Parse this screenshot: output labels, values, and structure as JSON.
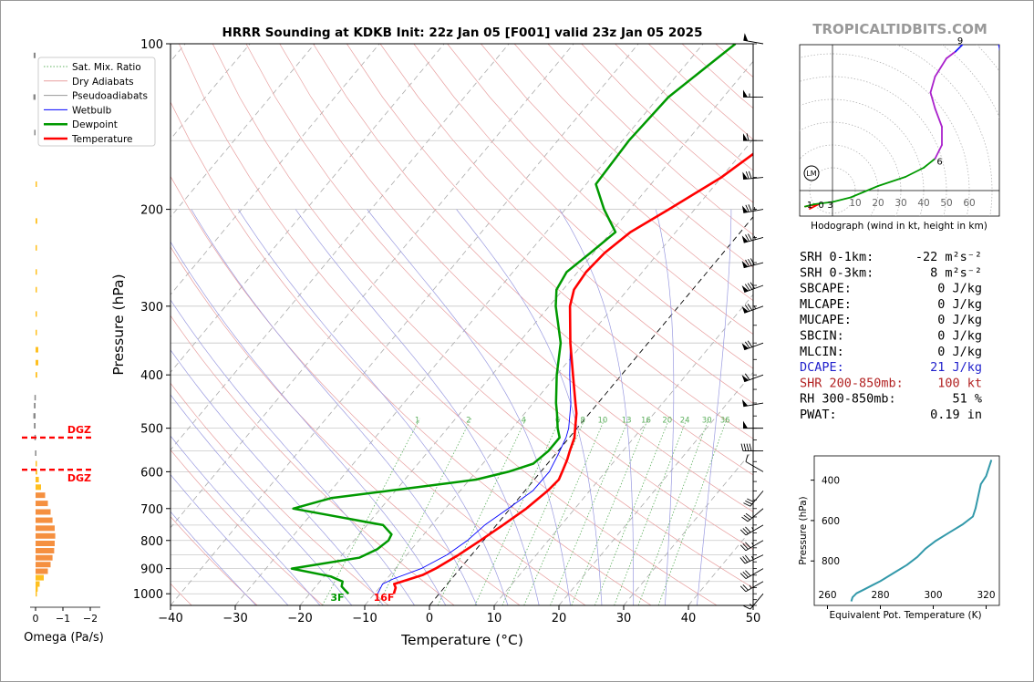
{
  "title": "HRRR Sounding at KDKB Init: 22z Jan 05 [F001] valid 23z Jan 05 2025",
  "watermark": "TROPICALTIDBITS.COM",
  "colors": {
    "temperature": "#ff0000",
    "dewpoint": "#009900",
    "wetbulb": "#0000ff",
    "dry_adiabat": "#e8a0a0",
    "moist_adiabat": "#9a9ae0",
    "mixing_ratio": "#5fb05f",
    "dcape": "#2222cc",
    "shear": "#b22222",
    "omega_yellow": "#ffc020",
    "omega_orange": "#f59040",
    "dgz": "#ff0000",
    "theta_e": "#3399aa"
  },
  "chart_data": [
    {
      "type": "line",
      "name": "skew-t",
      "xlabel": "Temperature (°C)",
      "ylabel": "Pressure (hPa)",
      "xlim": [
        -40,
        50
      ],
      "ylim": [
        1050,
        100
      ],
      "y_scale": "log",
      "x_ticks": [
        "−40",
        "−30",
        "−20",
        "−10",
        "0",
        "10",
        "20",
        "30",
        "40",
        "50"
      ],
      "y_ticks": [
        "100",
        "200",
        "300",
        "400",
        "500",
        "600",
        "700",
        "800",
        "900",
        "1000"
      ],
      "legend": {
        "placement": "top-left",
        "entries": [
          "Sat. Mix. Ratio",
          "Dry Adiabats",
          "Pseudoadiabats",
          "Wetbulb",
          "Dewpoint",
          "Temperature"
        ]
      },
      "series": [
        {
          "name": "Temperature",
          "points": [
            [
              1000,
              -7
            ],
            [
              975,
              -7.5
            ],
            [
              960,
              -8.2
            ],
            [
              925,
              -5
            ],
            [
              900,
              -3.8
            ],
            [
              850,
              -2
            ],
            [
              800,
              -0.5
            ],
            [
              750,
              1
            ],
            [
              700,
              2.5
            ],
            [
              650,
              3.5
            ],
            [
              620,
              3.8
            ],
            [
              600,
              3.3
            ],
            [
              570,
              2.5
            ],
            [
              550,
              1.8
            ],
            [
              520,
              0.8
            ],
            [
              500,
              -0.3
            ],
            [
              470,
              -2
            ],
            [
              450,
              -3.5
            ],
            [
              400,
              -7.5
            ],
            [
              350,
              -12
            ],
            [
              300,
              -16.8
            ],
            [
              280,
              -18.3
            ],
            [
              260,
              -18.7
            ],
            [
              240,
              -18.3
            ],
            [
              220,
              -17
            ],
            [
              200,
              -14
            ],
            [
              175,
              -10
            ],
            [
              150,
              -7
            ],
            [
              125,
              -4
            ],
            [
              100,
              -0.5
            ]
          ]
        },
        {
          "name": "Dewpoint",
          "points": [
            [
              1000,
              -14
            ],
            [
              985,
              -15
            ],
            [
              970,
              -16
            ],
            [
              950,
              -16.5
            ],
            [
              930,
              -19
            ],
            [
              900,
              -26
            ],
            [
              860,
              -17
            ],
            [
              830,
              -15.3
            ],
            [
              800,
              -14.7
            ],
            [
              780,
              -15
            ],
            [
              750,
              -17.5
            ],
            [
              700,
              -33.5
            ],
            [
              670,
              -29
            ],
            [
              640,
              -17
            ],
            [
              620,
              -9
            ],
            [
              600,
              -5
            ],
            [
              580,
              -2.2
            ],
            [
              550,
              -1.5
            ],
            [
              520,
              -1.5
            ],
            [
              500,
              -3
            ],
            [
              470,
              -5
            ],
            [
              450,
              -6.5
            ],
            [
              400,
              -10
            ],
            [
              350,
              -13.5
            ],
            [
              300,
              -19
            ],
            [
              280,
              -21
            ],
            [
              260,
              -21.7
            ],
            [
              240,
              -20.5
            ],
            [
              220,
              -19.3
            ],
            [
              200,
              -24
            ],
            [
              180,
              -28.5
            ],
            [
              150,
              -29
            ],
            [
              125,
              -28.5
            ],
            [
              100,
              -25
            ]
          ]
        },
        {
          "name": "Wetbulb",
          "points": [
            [
              1000,
              -9.5
            ],
            [
              960,
              -10
            ],
            [
              940,
              -9
            ],
            [
              900,
              -6
            ],
            [
              850,
              -3.8
            ],
            [
              800,
              -2.5
            ],
            [
              750,
              -1.8
            ],
            [
              700,
              -0.3
            ],
            [
              650,
              1.2
            ],
            [
              600,
              1.3
            ],
            [
              560,
              0.5
            ],
            [
              520,
              -0.5
            ],
            [
              500,
              -1.3
            ],
            [
              450,
              -4.2
            ],
            [
              400,
              -8
            ],
            [
              350,
              -12
            ],
            [
              300,
              -16.8
            ],
            [
              280,
              -18.3
            ],
            [
              260,
              -18.7
            ],
            [
              240,
              -18.3
            ],
            [
              220,
              -17
            ],
            [
              200,
              -14
            ],
            [
              175,
              -10
            ],
            [
              150,
              -7
            ],
            [
              125,
              -4
            ],
            [
              100,
              -0.5
            ]
          ]
        }
      ],
      "annotations": [
        {
          "text": "3F",
          "color": "#009900"
        },
        {
          "text": "16F",
          "color": "#ff0000"
        }
      ],
      "mixing_ratio_labels": [
        "1",
        "2",
        "4",
        "6",
        "8",
        "10",
        "13",
        "16",
        "20",
        "24",
        "30",
        "36"
      ],
      "mixing_ratio_values": [
        1,
        2,
        4,
        6,
        8,
        10,
        13,
        16,
        20,
        24,
        30,
        36
      ],
      "wind_barbs": [
        {
          "p": 1000,
          "speed_kt": 15,
          "dir_deg": 220
        },
        {
          "p": 950,
          "speed_kt": 25,
          "dir_deg": 240
        },
        {
          "p": 900,
          "speed_kt": 30,
          "dir_deg": 240
        },
        {
          "p": 850,
          "speed_kt": 35,
          "dir_deg": 245
        },
        {
          "p": 800,
          "speed_kt": 35,
          "dir_deg": 240
        },
        {
          "p": 750,
          "speed_kt": 35,
          "dir_deg": 240
        },
        {
          "p": 700,
          "speed_kt": 30,
          "dir_deg": 230
        },
        {
          "p": 650,
          "speed_kt": 30,
          "dir_deg": 220
        },
        {
          "p": 600,
          "speed_kt": 10,
          "dir_deg": 300
        },
        {
          "p": 550,
          "speed_kt": 40,
          "dir_deg": 270
        },
        {
          "p": 500,
          "speed_kt": 50,
          "dir_deg": 270
        },
        {
          "p": 450,
          "speed_kt": 50,
          "dir_deg": 260
        },
        {
          "p": 400,
          "speed_kt": 60,
          "dir_deg": 250
        },
        {
          "p": 350,
          "speed_kt": 70,
          "dir_deg": 250
        },
        {
          "p": 300,
          "speed_kt": 75,
          "dir_deg": 250
        },
        {
          "p": 275,
          "speed_kt": 80,
          "dir_deg": 250
        },
        {
          "p": 250,
          "speed_kt": 80,
          "dir_deg": 255
        },
        {
          "p": 225,
          "speed_kt": 75,
          "dir_deg": 255
        },
        {
          "p": 200,
          "speed_kt": 75,
          "dir_deg": 260
        },
        {
          "p": 175,
          "speed_kt": 70,
          "dir_deg": 265
        },
        {
          "p": 150,
          "speed_kt": 60,
          "dir_deg": 270
        },
        {
          "p": 125,
          "speed_kt": 55,
          "dir_deg": 270
        },
        {
          "p": 100,
          "speed_kt": 50,
          "dir_deg": 280
        }
      ]
    },
    {
      "type": "bar",
      "name": "omega",
      "xlabel": "Omega (Pa/s)",
      "x_ticks": [
        "0",
        "−1",
        "−2"
      ],
      "xlim": [
        0.2,
        -2.2
      ],
      "dgz_label": "DGZ",
      "dgz_bounds_hpa": [
        520,
        595
      ],
      "bars": [
        {
          "p": 1000,
          "value": -0.05
        },
        {
          "p": 980,
          "value": -0.08
        },
        {
          "p": 960,
          "value": -0.15
        },
        {
          "p": 935,
          "value": -0.3
        },
        {
          "p": 910,
          "value": -0.45
        },
        {
          "p": 885,
          "value": -0.55
        },
        {
          "p": 860,
          "value": -0.62
        },
        {
          "p": 835,
          "value": -0.68
        },
        {
          "p": 810,
          "value": -0.7
        },
        {
          "p": 785,
          "value": -0.72
        },
        {
          "p": 760,
          "value": -0.7
        },
        {
          "p": 735,
          "value": -0.62
        },
        {
          "p": 710,
          "value": -0.55
        },
        {
          "p": 685,
          "value": -0.45
        },
        {
          "p": 662,
          "value": -0.35
        },
        {
          "p": 640,
          "value": -0.2
        },
        {
          "p": 620,
          "value": -0.12
        },
        {
          "p": 600,
          "value": -0.06
        },
        {
          "p": 580,
          "value": -0.03
        },
        {
          "p": 555,
          "value": 0.02
        },
        {
          "p": 520,
          "value": 0.04
        },
        {
          "p": 495,
          "value": 0.06
        },
        {
          "p": 475,
          "value": 0.08
        },
        {
          "p": 455,
          "value": 0.06
        },
        {
          "p": 440,
          "value": 0.04
        },
        {
          "p": 400,
          "value": -0.06
        },
        {
          "p": 380,
          "value": -0.1
        },
        {
          "p": 360,
          "value": -0.1
        },
        {
          "p": 335,
          "value": -0.04
        },
        {
          "p": 310,
          "value": -0.01
        },
        {
          "p": 280,
          "value": -0.01
        },
        {
          "p": 260,
          "value": -0.02
        },
        {
          "p": 235,
          "value": -0.03
        },
        {
          "p": 210,
          "value": -0.06
        },
        {
          "p": 180,
          "value": -0.02
        },
        {
          "p": 145,
          "value": 0.05
        },
        {
          "p": 125,
          "value": 0.08
        },
        {
          "p": 105,
          "value": 0.07
        }
      ]
    },
    {
      "type": "line",
      "name": "hodograph",
      "title": "Hodograph (wind in kt, height in km)",
      "ring_labels": [
        "10",
        "20",
        "30",
        "40",
        "50",
        "60"
      ],
      "height_labels": [
        "1",
        "0",
        "3",
        "6",
        "9"
      ],
      "storm_motion_label": "LM",
      "points": [
        {
          "u": -10,
          "v": -8,
          "seg": "0-1"
        },
        {
          "u": -6,
          "v": -6,
          "seg": "0-1"
        },
        {
          "u": -12,
          "v": -7,
          "seg": "0-1"
        },
        {
          "u": -8,
          "v": -6,
          "seg": "1-3"
        },
        {
          "u": 0,
          "v": -5,
          "seg": "1-3"
        },
        {
          "u": 8,
          "v": -3,
          "seg": "3-6"
        },
        {
          "u": 20,
          "v": 2,
          "seg": "3-6"
        },
        {
          "u": 32,
          "v": 6,
          "seg": "3-6"
        },
        {
          "u": 40,
          "v": 10,
          "seg": "3-6"
        },
        {
          "u": 45,
          "v": 14,
          "seg": "3-6"
        },
        {
          "u": 48,
          "v": 20,
          "seg": "6-9"
        },
        {
          "u": 48,
          "v": 28,
          "seg": "6-9"
        },
        {
          "u": 45,
          "v": 36,
          "seg": "6-9"
        },
        {
          "u": 43,
          "v": 43,
          "seg": "6-9"
        },
        {
          "u": 45,
          "v": 50,
          "seg": "6-9"
        },
        {
          "u": 50,
          "v": 58,
          "seg": "6-9"
        },
        {
          "u": 54,
          "v": 61,
          "seg": "6-9"
        },
        {
          "u": 58,
          "v": 65,
          "seg": "9-12"
        },
        {
          "u": 66,
          "v": 68,
          "seg": "9-12"
        },
        {
          "u": 72,
          "v": 69,
          "seg": "9-12"
        },
        {
          "u": 75,
          "v": 54,
          "seg": "9-12"
        }
      ]
    },
    {
      "type": "line",
      "name": "theta-e",
      "xlabel": "Equivalent Pot. Temperature (K)",
      "ylabel": "Pressure (hPa)",
      "x_ticks": [
        "260",
        "280",
        "300",
        "320"
      ],
      "y_ticks": [
        "400",
        "600",
        "800"
      ],
      "xlim": [
        255,
        325
      ],
      "ylim": [
        1020,
        280
      ],
      "points": [
        [
          1000,
          269
        ],
        [
          980,
          269.5
        ],
        [
          960,
          271
        ],
        [
          940,
          274
        ],
        [
          920,
          277
        ],
        [
          900,
          280
        ],
        [
          860,
          285
        ],
        [
          820,
          290
        ],
        [
          780,
          294
        ],
        [
          740,
          297
        ],
        [
          700,
          301
        ],
        [
          660,
          306
        ],
        [
          620,
          311
        ],
        [
          580,
          315
        ],
        [
          540,
          316
        ],
        [
          480,
          317
        ],
        [
          420,
          318
        ],
        [
          380,
          320
        ],
        [
          340,
          321
        ],
        [
          300,
          322
        ]
      ]
    }
  ],
  "parameters": [
    {
      "label": "SRH 0-1km:",
      "value": "-22 m²s⁻²",
      "color": "#000000"
    },
    {
      "label": "SRH 0-3km:",
      "value": "8 m²s⁻²",
      "color": "#000000"
    },
    {
      "label": "SBCAPE:",
      "value": "0 J/kg",
      "color": "#000000"
    },
    {
      "label": "MLCAPE:",
      "value": "0 J/kg",
      "color": "#000000"
    },
    {
      "label": "MUCAPE:",
      "value": "0 J/kg",
      "color": "#000000"
    },
    {
      "label": "SBCIN:",
      "value": "0 J/kg",
      "color": "#000000"
    },
    {
      "label": "MLCIN:",
      "value": "0 J/kg",
      "color": "#000000"
    },
    {
      "label": "DCAPE:",
      "value": "21 J/kg",
      "color": "#2222cc"
    },
    {
      "label": "SHR 200-850mb:",
      "value": "100 kt",
      "color": "#b22222"
    },
    {
      "label": "RH 300-850mb:",
      "value": "51 %",
      "color": "#000000"
    },
    {
      "label": "PWAT:",
      "value": "0.19 in",
      "color": "#000000"
    }
  ]
}
